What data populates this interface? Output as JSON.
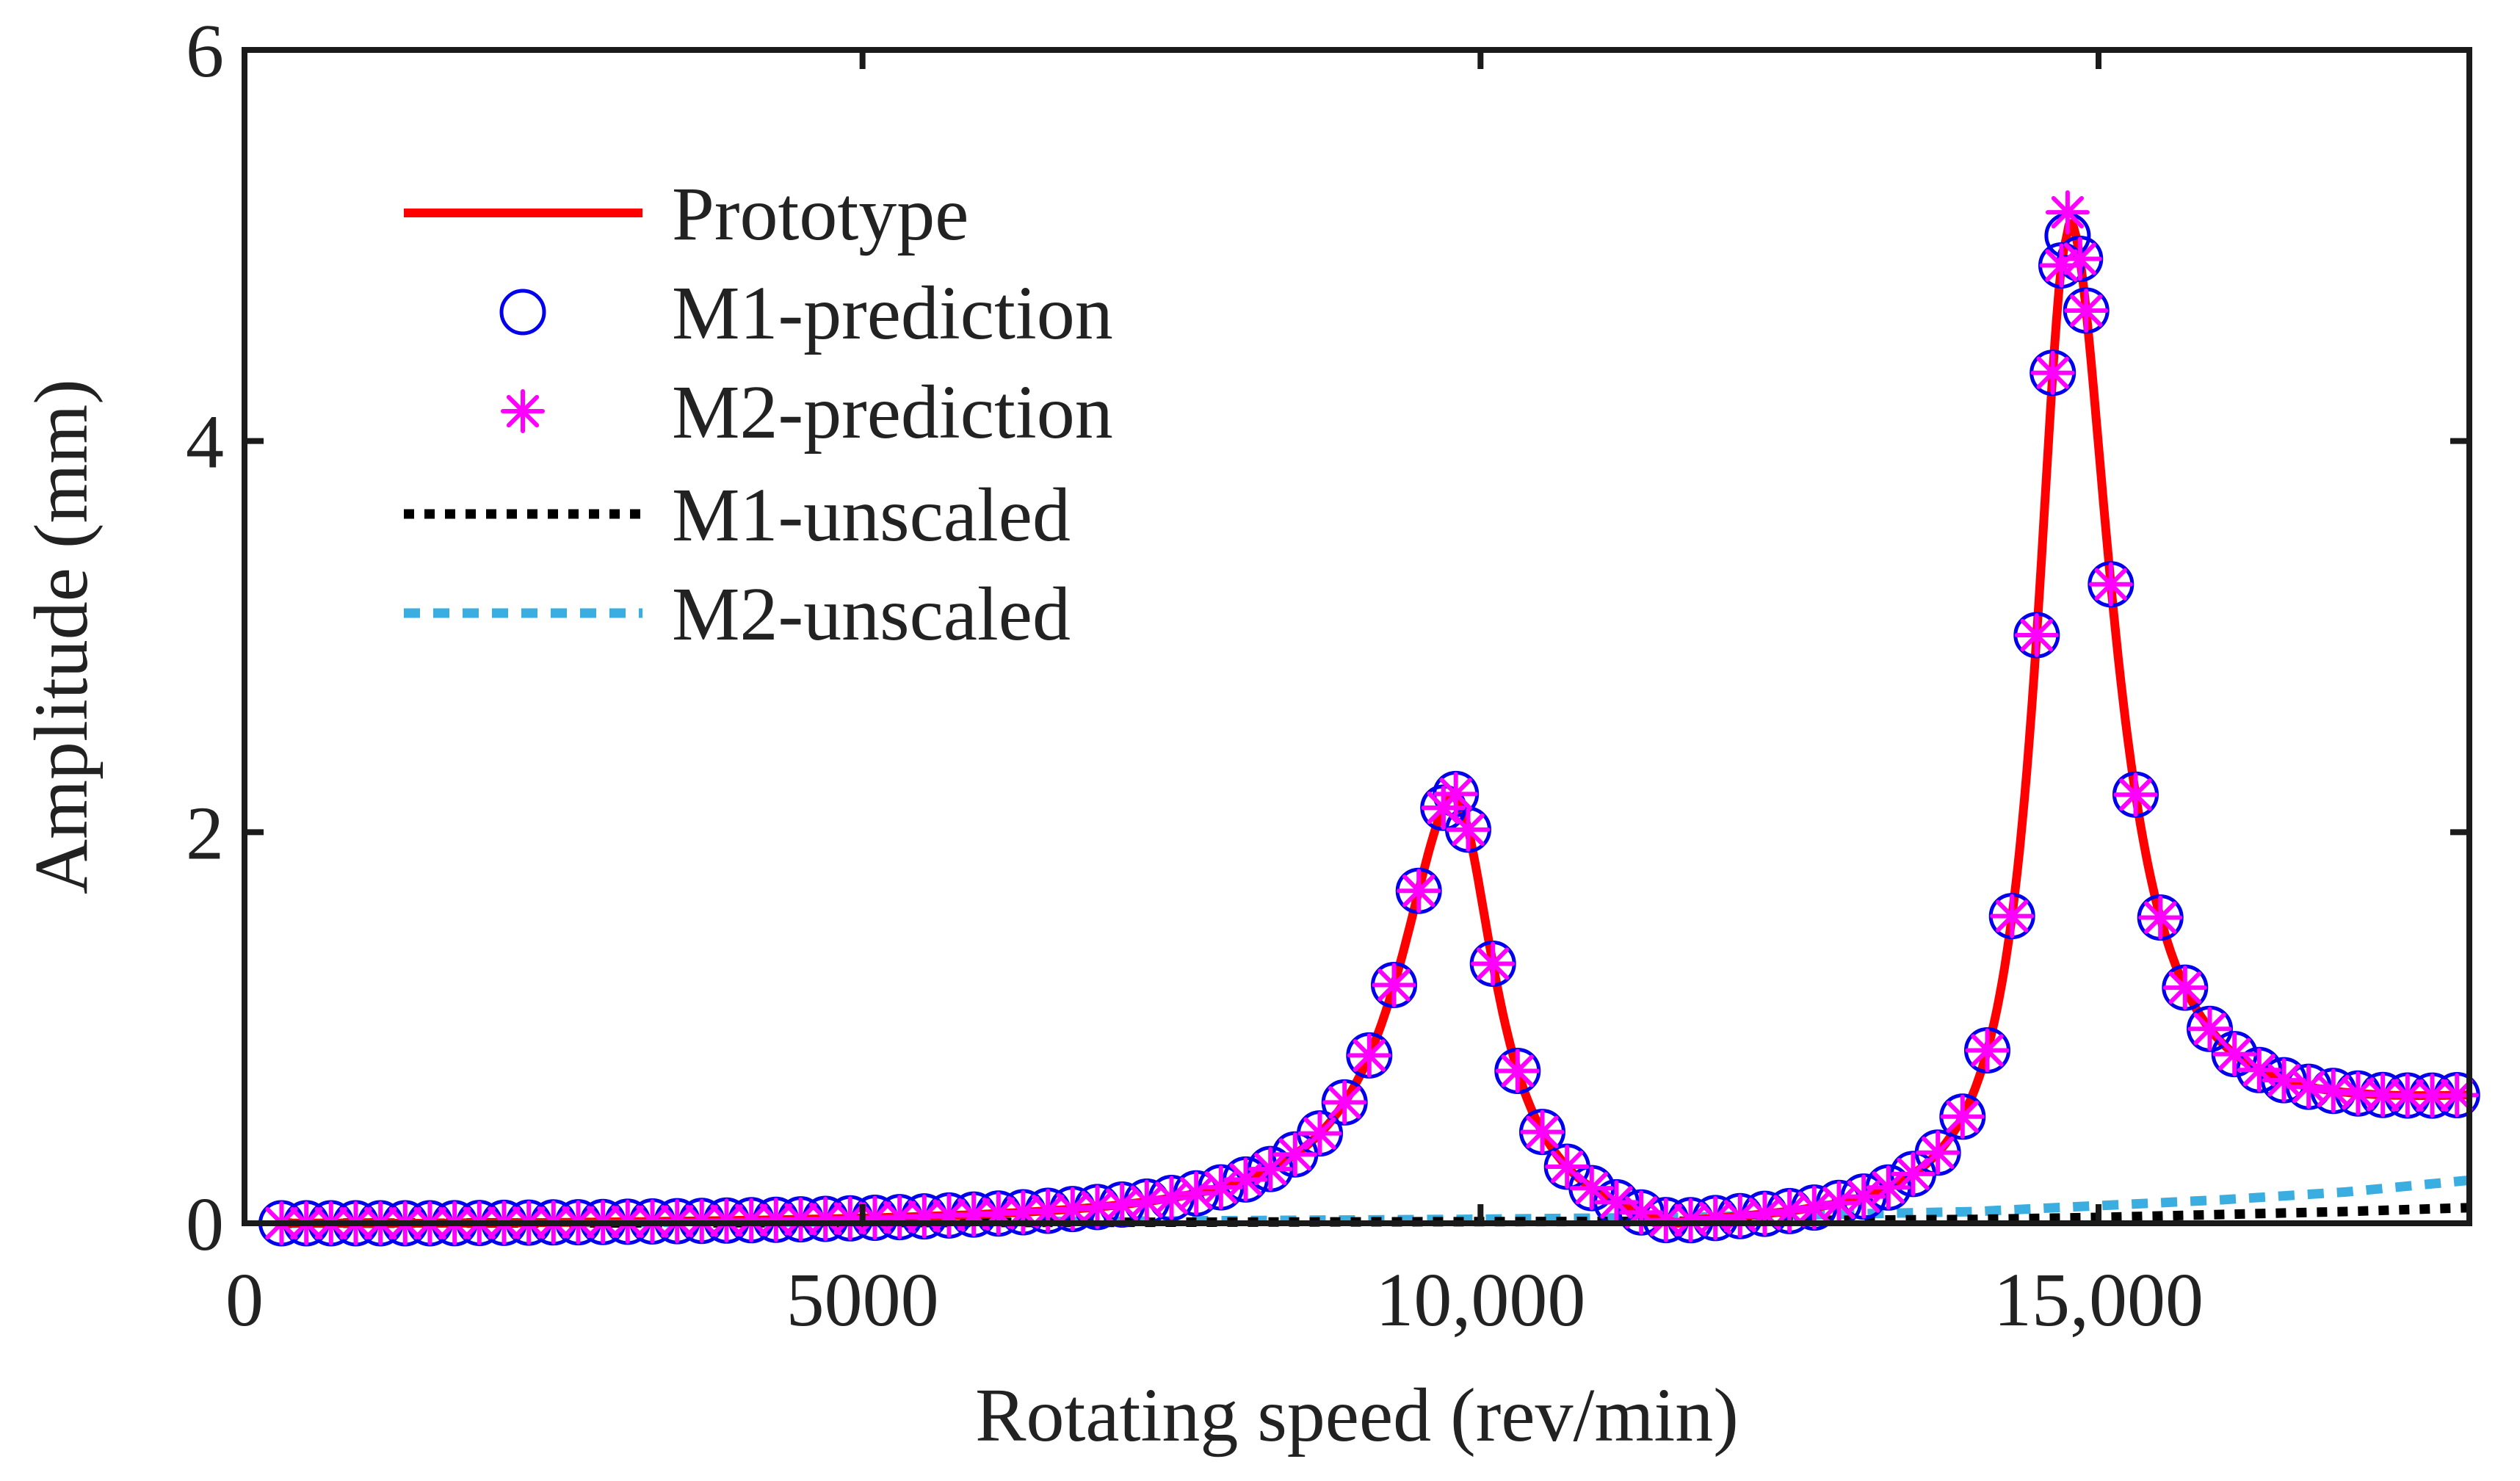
{
  "chart_data": {
    "type": "line",
    "title": "",
    "xlabel": "Rotating speed (rev/min)",
    "ylabel": "Amplitude (mm)",
    "xlim": [
      0,
      18000
    ],
    "ylim": [
      0,
      6
    ],
    "xticks": [
      0,
      5000,
      10000,
      15000
    ],
    "xtick_labels": [
      "0",
      "5000",
      "10,000",
      "15,000"
    ],
    "yticks": [
      0,
      2,
      4,
      6
    ],
    "ytick_labels": [
      "0",
      "2",
      "4",
      "6"
    ],
    "grid": false,
    "legend_position": "top-left",
    "model": {
      "x_start": 300,
      "x_end": 18000,
      "peaks": [
        {
          "rpm": 9800,
          "amplitude": 2.15
        },
        {
          "rpm": 14750,
          "amplitude": 5.05
        }
      ],
      "antiresonance_rpm": 11600,
      "end_value": 0.72
    },
    "series": [
      {
        "name": "Prototype",
        "style": "solid-line",
        "color": "#ff0000"
      },
      {
        "name": "M1-prediction",
        "style": "circle-marker",
        "color": "#0000ee"
      },
      {
        "name": "M2-prediction",
        "style": "asterisk-marker",
        "color": "#ff00ff"
      },
      {
        "name": "M1-unscaled",
        "style": "dotted-line",
        "color": "#000000",
        "x": [
          300,
          7000,
          11600,
          14000,
          15000,
          16000,
          17000,
          18000
        ],
        "y": [
          0.0,
          0.005,
          0.01,
          0.02,
          0.03,
          0.045,
          0.06,
          0.08
        ]
      },
      {
        "name": "M2-unscaled",
        "style": "dashed-line",
        "color": "#3aaee0",
        "x": [
          300,
          7000,
          9800,
          11600,
          14000,
          15000,
          16000,
          17000,
          18000
        ],
        "y": [
          0.0,
          0.01,
          0.02,
          0.03,
          0.06,
          0.09,
          0.12,
          0.16,
          0.22
        ]
      }
    ]
  }
}
